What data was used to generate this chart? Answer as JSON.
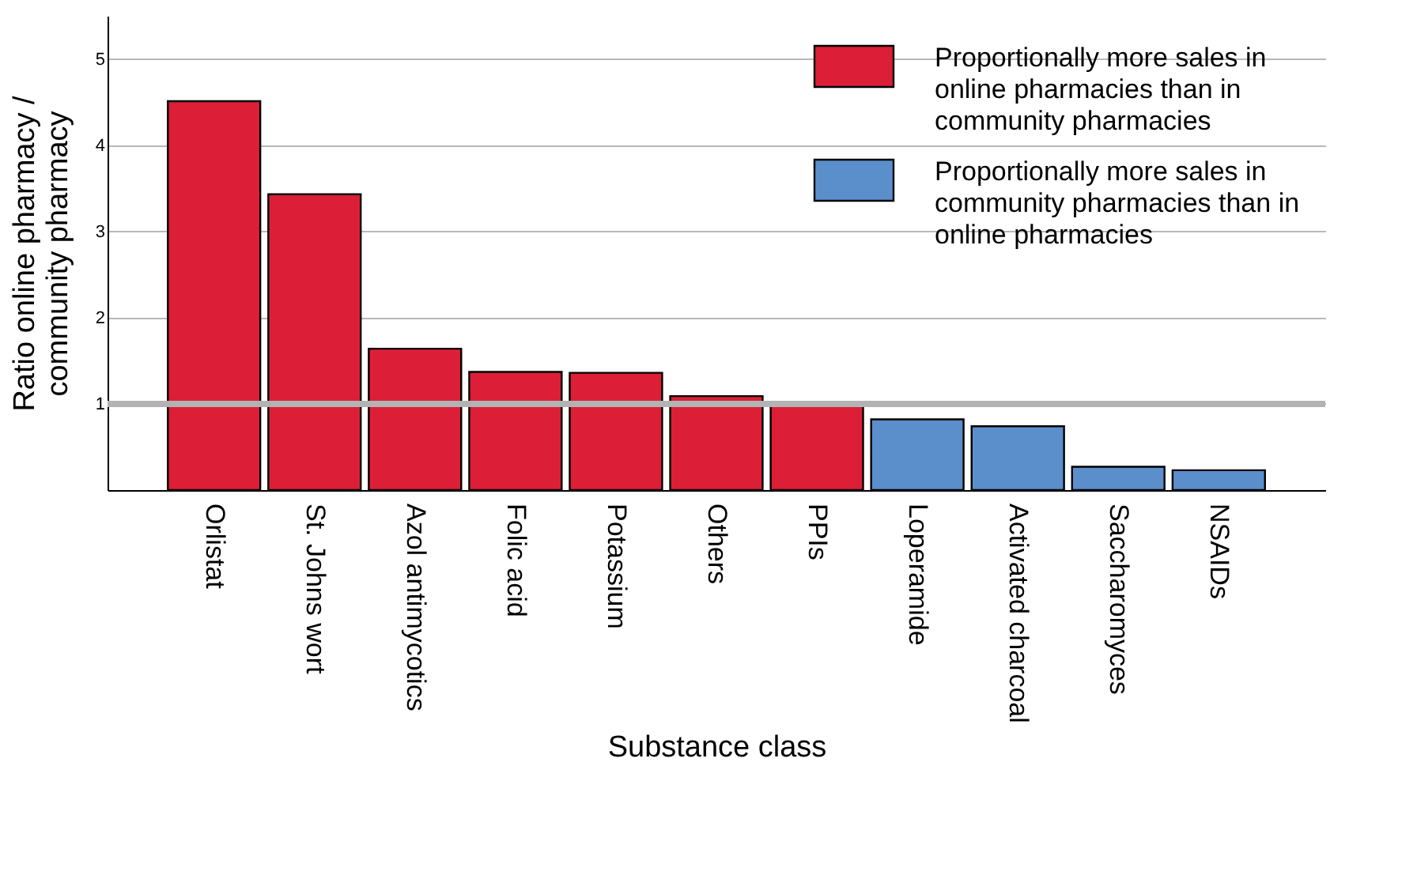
{
  "chart_data": {
    "type": "bar",
    "xlabel": "Substance class",
    "ylabel": "Ratio online pharmacy / community pharmacy",
    "categories": [
      "Orlistat",
      "St. Johns wort",
      "Azol antimycotics",
      "Folic acid",
      "Potassium",
      "Others",
      "PPIs",
      "Loperamide",
      "Activated charcoal",
      "Saccharomyces",
      "NSAIDs"
    ],
    "series": [
      {
        "name": "Proportionally more sales in online pharmacies than in community pharmacies",
        "color": "#dc1f37",
        "values": [
          4.51,
          3.43,
          1.64,
          1.37,
          1.36,
          1.09,
          1.0,
          null,
          null,
          null,
          null
        ]
      },
      {
        "name": "Proportionally more sales in community pharmacies than in online pharmacies",
        "color": "#5b8fcc",
        "values": [
          null,
          null,
          null,
          null,
          null,
          null,
          null,
          0.82,
          0.74,
          0.27,
          0.23
        ]
      }
    ],
    "ylim": [
      0,
      5.5
    ],
    "yticks": [
      1,
      2,
      3,
      4,
      5
    ],
    "grid": "y",
    "legend": "top right",
    "ref_lines": [
      {
        "axis": "y",
        "value": 1,
        "color": "#b3b3b3"
      }
    ]
  }
}
